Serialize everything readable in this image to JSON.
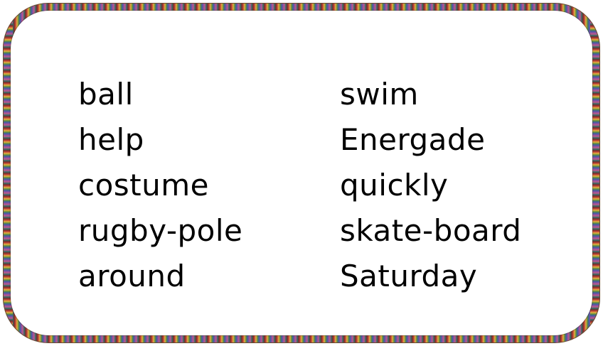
{
  "word_list": {
    "left_column": [
      "ball",
      "help",
      "costume",
      "rugby-pole",
      "around"
    ],
    "right_column": [
      "swim",
      "Energade",
      "quickly",
      "skate-board",
      "Saturday"
    ]
  },
  "colors": {
    "text": "#000000",
    "background": "#ffffff",
    "border_stripes": [
      "#7a2a2a",
      "#c74a3a",
      "#e3b33e",
      "#5f8f3a",
      "#3b5fa0",
      "#8a4fa3",
      "#c05a8a",
      "#2f6f6a"
    ]
  }
}
